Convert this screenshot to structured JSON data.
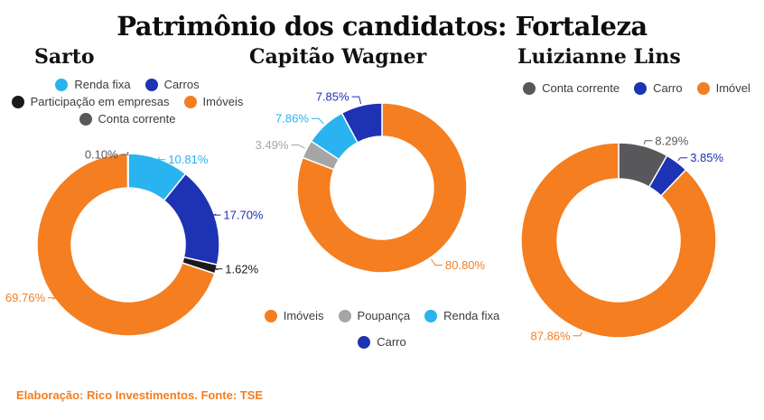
{
  "title": "Patrimônio dos candidatos: Fortaleza",
  "source_note": "Elaboração: Rico Investimentos. Fonte: TSE",
  "colors": {
    "orange": "#F47E20",
    "dark_blue": "#1E32B4",
    "light_blue": "#29B3F0",
    "black": "#1A1A1A",
    "dark_gray": "#58585A",
    "light_gray": "#A6A6A6"
  },
  "chart_data": [
    {
      "type": "pie",
      "subtype": "donut",
      "title": "Sarto",
      "legend_position": "top",
      "start_angle_deg": 0,
      "legend_rows": [
        [
          "Renda fixa",
          "Carros"
        ],
        [
          "Participação em empresas",
          "Imóveis"
        ],
        [
          "Conta corrente"
        ]
      ],
      "slices": [
        {
          "label": "Renda fixa",
          "value": 10.81,
          "display": "10.81%",
          "color": "#29B3F0"
        },
        {
          "label": "Carros",
          "value": 17.7,
          "display": "17.70%",
          "color": "#1E32B4"
        },
        {
          "label": "Participação em empresas",
          "value": 1.62,
          "display": "1.62%",
          "color": "#1A1A1A"
        },
        {
          "label": "Imóveis",
          "value": 69.76,
          "display": "69.76%",
          "color": "#F47E20"
        },
        {
          "label": "Conta corrente",
          "value": 0.1,
          "display": "0.10%",
          "color": "#58585A"
        }
      ]
    },
    {
      "type": "pie",
      "subtype": "donut",
      "title": "Capitão Wagner",
      "legend_position": "bottom",
      "start_angle_deg": 0,
      "legend_rows": [
        [
          "Imóveis",
          "Poupança",
          "Renda fixa"
        ],
        [
          "Carro"
        ]
      ],
      "slices": [
        {
          "label": "Imóveis",
          "value": 80.8,
          "display": "80.80%",
          "color": "#F47E20"
        },
        {
          "label": "Poupança",
          "value": 3.49,
          "display": "3.49%",
          "color": "#A6A6A6"
        },
        {
          "label": "Renda fixa",
          "value": 7.86,
          "display": "7.86%",
          "color": "#29B3F0"
        },
        {
          "label": "Carro",
          "value": 7.85,
          "display": "7.85%",
          "color": "#1E32B4"
        }
      ]
    },
    {
      "type": "pie",
      "subtype": "donut",
      "title": "Luizianne Lins",
      "legend_position": "top",
      "start_angle_deg": 0,
      "legend_rows": [
        [
          "Conta corrente",
          "Carro",
          "Imóvel"
        ]
      ],
      "slices": [
        {
          "label": "Conta corrente",
          "value": 8.29,
          "display": "8.29%",
          "color": "#58585A"
        },
        {
          "label": "Carro",
          "value": 3.85,
          "display": "3.85%",
          "color": "#1E32B4"
        },
        {
          "label": "Imóvel",
          "value": 87.86,
          "display": "87.86%",
          "color": "#F47E20"
        }
      ]
    }
  ]
}
